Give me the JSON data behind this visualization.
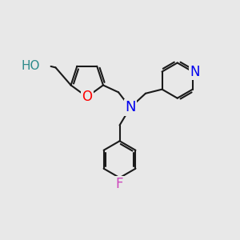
{
  "bg_color": "#e8e8e8",
  "bond_color": "#1a1a1a",
  "bond_width": 1.5,
  "atom_colors": {
    "N": "#0000ee",
    "O": "#ff0000",
    "H": "#2e8b8b",
    "F": "#cc44bb"
  },
  "font_size": 13,
  "fig_size": [
    3.0,
    3.0
  ],
  "dpi": 100
}
